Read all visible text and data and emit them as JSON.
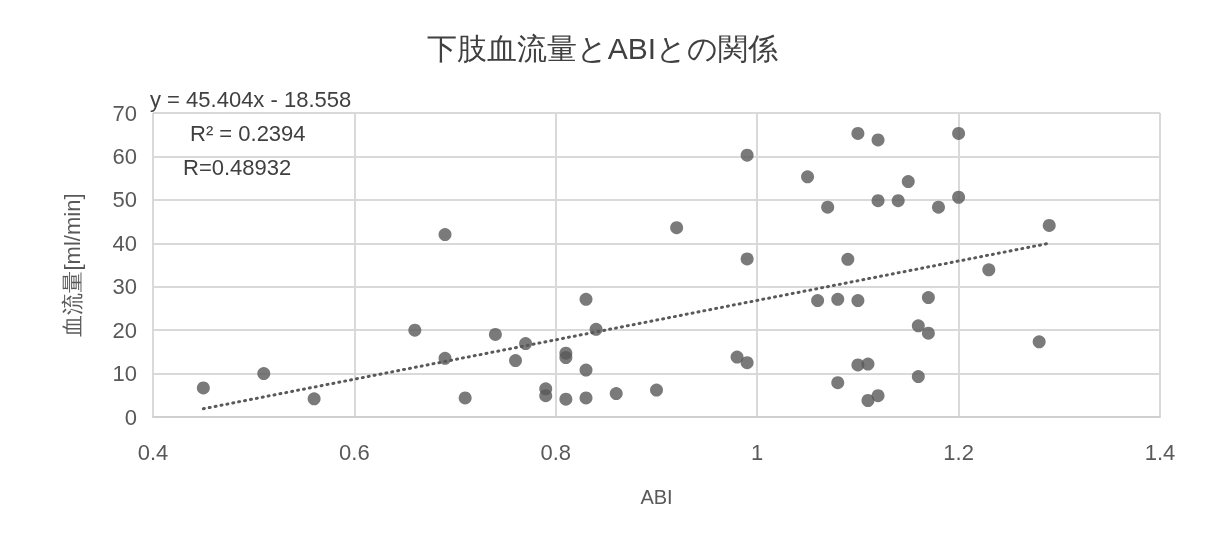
{
  "chart_data": {
    "type": "scatter",
    "title": "下肢血流量とABIとの関係",
    "xlabel": "ABI",
    "ylabel": "血流量[ml/min]",
    "annotations": [
      "y = 45.404x - 18.558",
      "R² = 0.2394",
      "R=0.48932"
    ],
    "xlim": [
      0.4,
      1.4
    ],
    "xticks": [
      0.4,
      0.6,
      0.8,
      1,
      1.2,
      1.4
    ],
    "ylim": [
      0,
      70
    ],
    "yticks": [
      0,
      10,
      20,
      30,
      40,
      50,
      60,
      70
    ],
    "grid": true,
    "marker": "circle",
    "series": [
      {
        "color": "#595959",
        "x": [
          0.45,
          0.51,
          0.56,
          0.66,
          0.69,
          0.69,
          0.71,
          0.74,
          0.76,
          0.77,
          0.79,
          0.79,
          0.81,
          0.81,
          0.81,
          0.83,
          0.83,
          0.83,
          0.84,
          0.86,
          0.9,
          0.92,
          0.98,
          0.99,
          0.99,
          0.99,
          1.05,
          1.06,
          1.07,
          1.08,
          1.08,
          1.09,
          1.1,
          1.1,
          1.1,
          1.11,
          1.11,
          1.12,
          1.12,
          1.12,
          1.14,
          1.15,
          1.16,
          1.16,
          1.17,
          1.17,
          1.18,
          1.2,
          1.2,
          1.23,
          1.28,
          1.29
        ],
        "values": [
          6.7,
          10,
          4.2,
          20,
          42,
          13.5,
          4.4,
          19,
          13,
          16.9,
          6.5,
          4.9,
          14.7,
          13.7,
          4.1,
          27.1,
          10.8,
          4.4,
          20.2,
          5.4,
          6.2,
          43.6,
          13.8,
          60.3,
          36.4,
          12.5,
          55.3,
          26.8,
          48.3,
          27.1,
          7.9,
          36.3,
          65.3,
          26.8,
          12,
          12.2,
          3.8,
          63.8,
          49.8,
          4.9,
          49.8,
          54.2,
          21,
          9.3,
          27.5,
          19.3,
          48.3,
          65.3,
          50.6,
          33.9,
          17.3,
          44.1
        ]
      },
      {
        "type": "line",
        "color": "#595959",
        "line_style": "dotted",
        "marker": "none",
        "x": [
          0.45,
          1.29
        ],
        "values": [
          1.9,
          40
        ]
      }
    ]
  }
}
